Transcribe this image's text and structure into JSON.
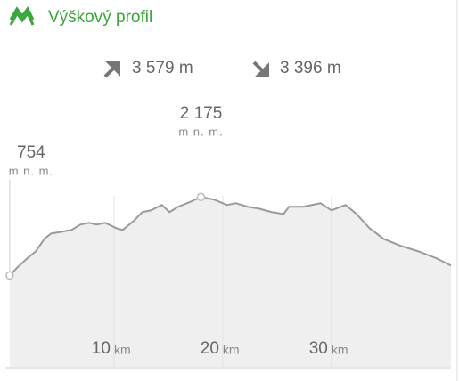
{
  "title": "Výškový profil",
  "stats": {
    "ascent": "3 579 m",
    "descent": "3 396 m"
  },
  "chart_data": {
    "type": "area",
    "color": "#9a9a9a",
    "fill": "#efefef",
    "x": [
      0.4,
      1.1,
      2.0,
      2.8,
      3.6,
      4.2,
      5.2,
      6.1,
      6.9,
      7.7,
      8.4,
      9.2,
      10.2,
      10.8,
      11.8,
      12.6,
      13.4,
      14.4,
      15.1,
      15.9,
      17.1,
      18.0,
      19.2,
      20.4,
      21.2,
      22.3,
      23.3,
      24.5,
      25.6,
      26.1,
      27.4,
      28.2,
      29.0,
      30.0,
      31.3,
      32.3,
      33.5,
      34.8,
      36.4,
      38.0,
      39.7,
      41.0
    ],
    "values": [
      754,
      899,
      1061,
      1190,
      1416,
      1513,
      1545,
      1578,
      1675,
      1707,
      1675,
      1707,
      1610,
      1578,
      1739,
      1901,
      1933,
      2030,
      1901,
      1998,
      2094,
      2175,
      2127,
      2030,
      2062,
      1998,
      1966,
      1901,
      1868,
      1998,
      1998,
      2030,
      2062,
      1933,
      2030,
      1868,
      1610,
      1416,
      1287,
      1190,
      1061,
      932
    ],
    "xlim": [
      0,
      41
    ],
    "ylim": [
      -900,
      4130
    ],
    "xticks": [
      10,
      20,
      30
    ],
    "x_unit": "km",
    "grid": true,
    "annotations": [
      {
        "x": 0.4,
        "value": 754,
        "label": "754",
        "unit": "m n. m."
      },
      {
        "x": 18.0,
        "value": 2175,
        "label": "2 175",
        "unit": "m n. m."
      }
    ]
  }
}
